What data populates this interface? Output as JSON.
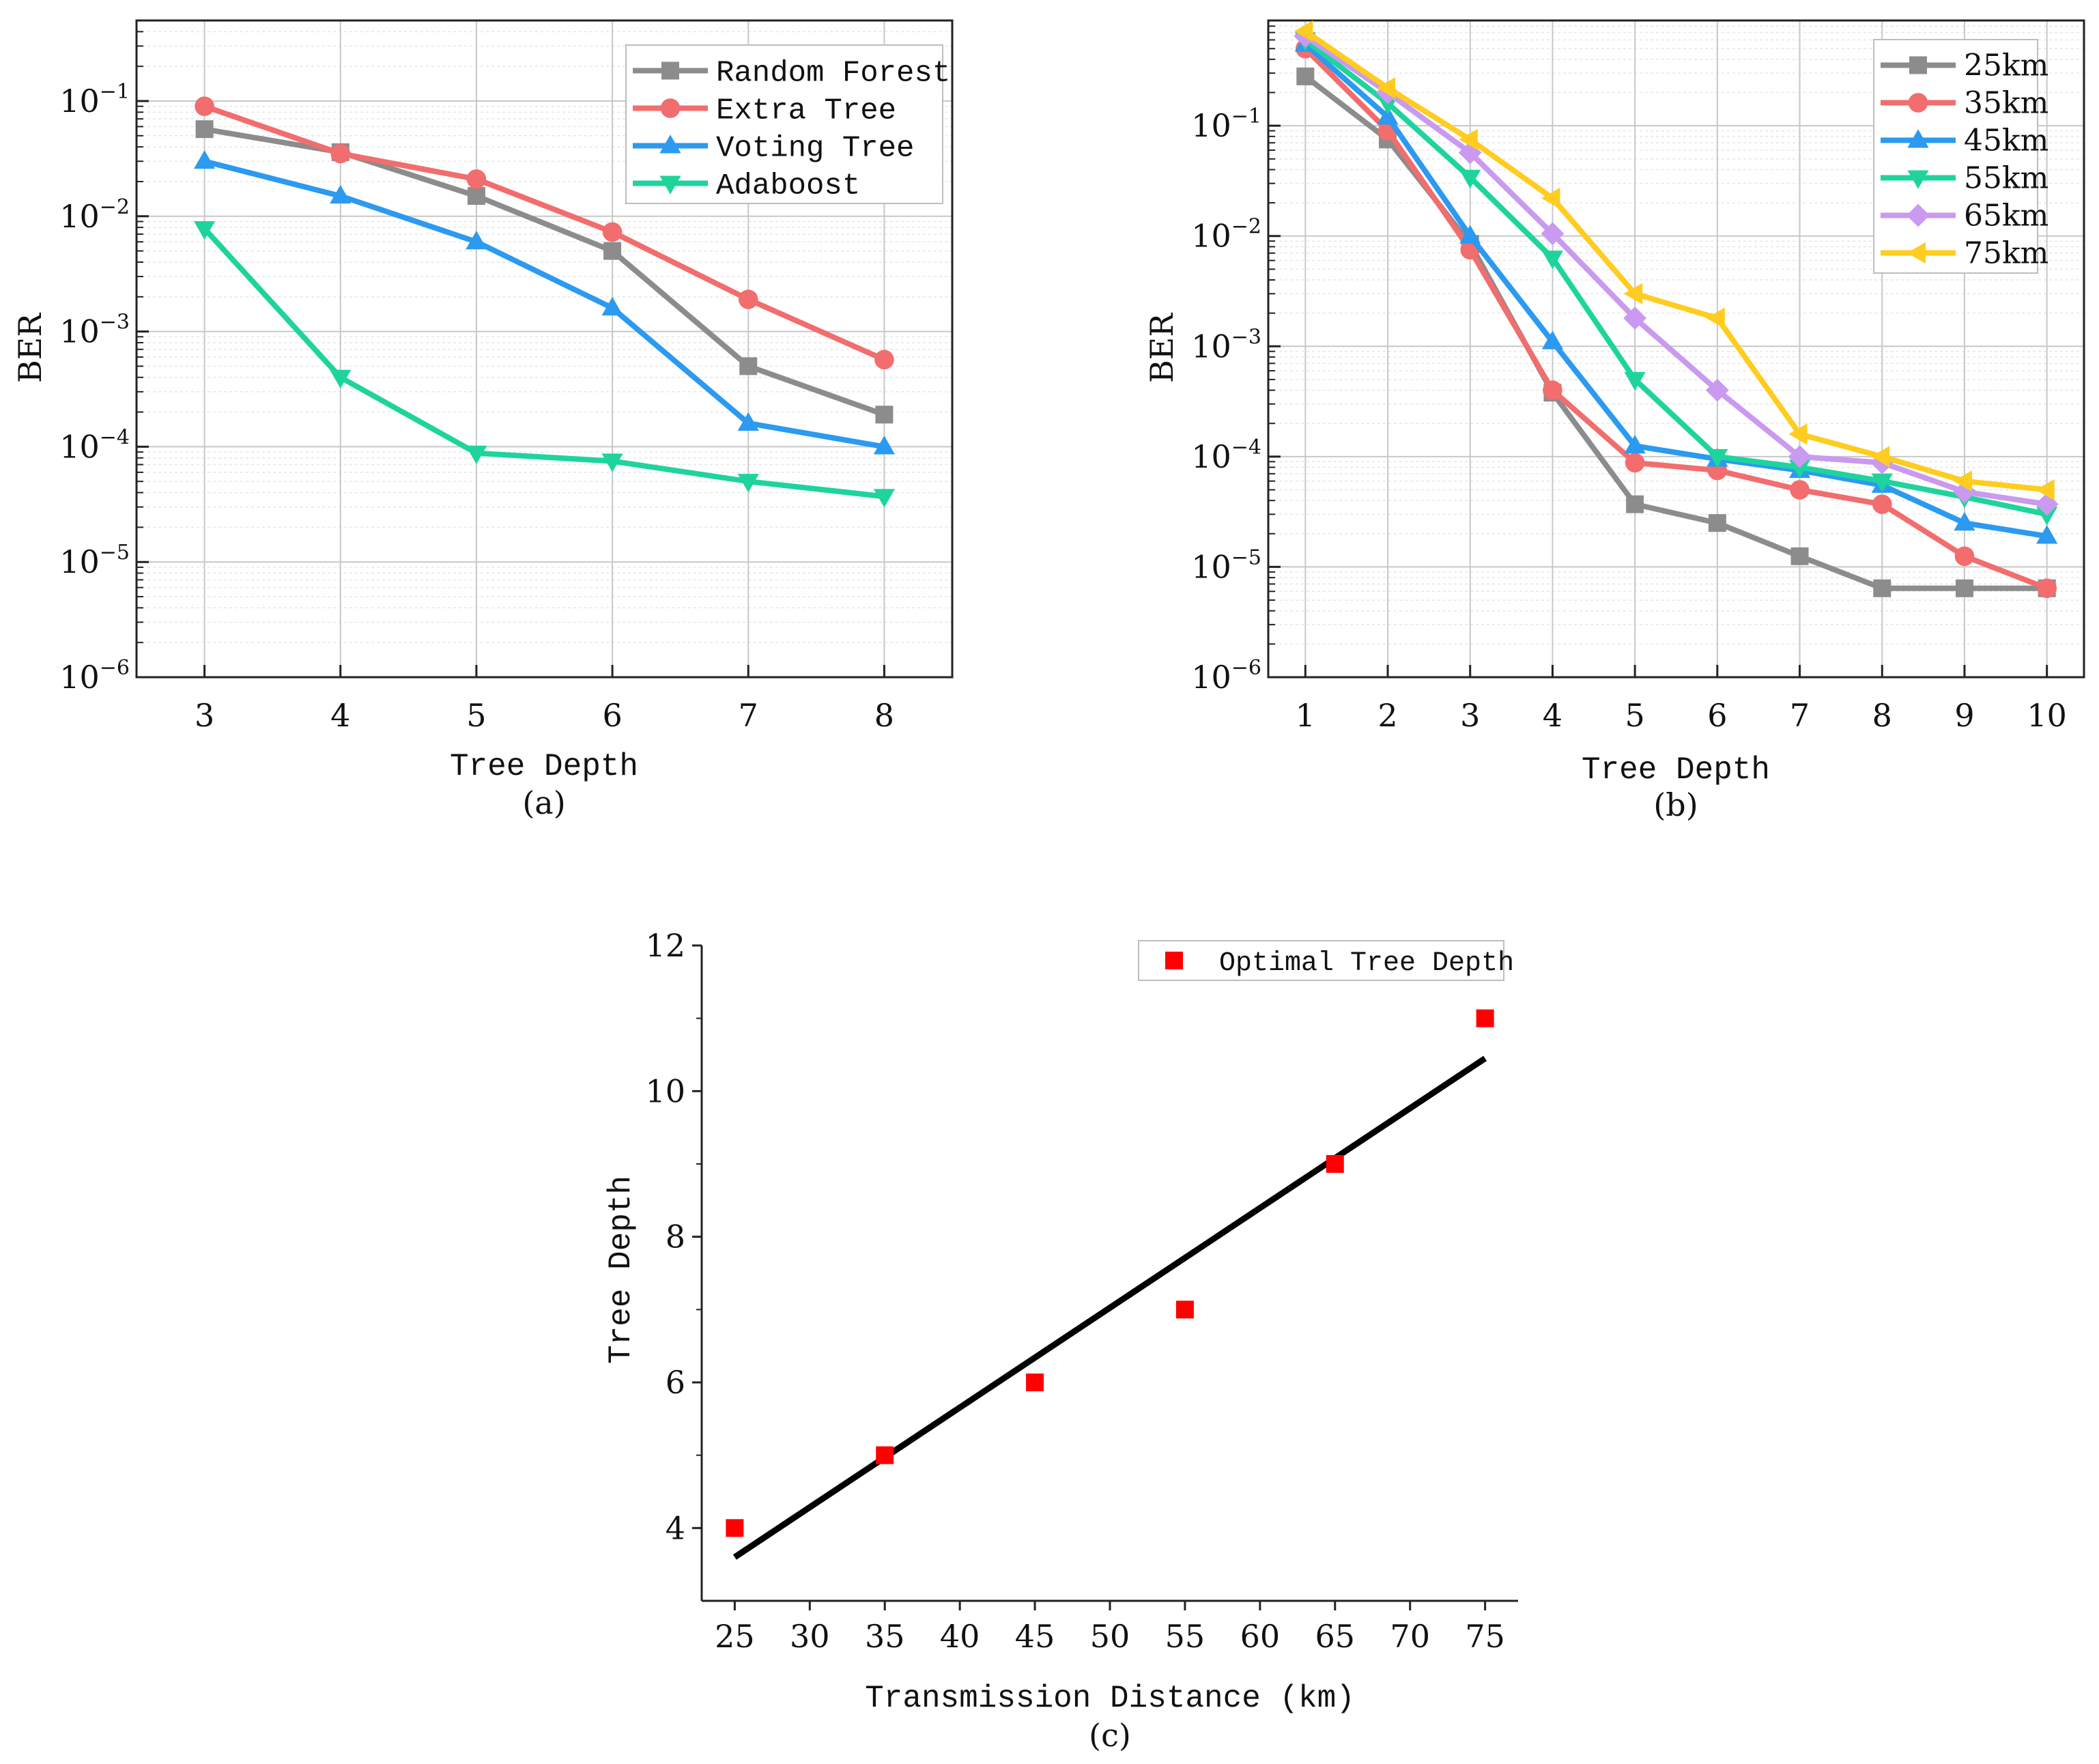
{
  "colors": {
    "gray": "#8c8c8c",
    "red": "#f26d6d",
    "blue": "#2b9af0",
    "green": "#1fd49c",
    "purple": "#c99af0",
    "yellow": "#ffcc1f",
    "fit_line": "#000000",
    "scatter": "#ff0000",
    "grid": "#c8c8c8"
  },
  "chart_data": [
    {
      "id": "a",
      "type": "line",
      "caption": "(a)",
      "xlabel": "Tree Depth",
      "ylabel": "BER",
      "yscale": "log",
      "ylim": [
        1e-06,
        0.5
      ],
      "ytick_values": [
        1e-06,
        1e-05,
        0.0001,
        0.001,
        0.01,
        0.1
      ],
      "ytick_labels": [
        {
          "base": "10",
          "exp": "−6"
        },
        {
          "base": "10",
          "exp": "−5"
        },
        {
          "base": "10",
          "exp": "−4"
        },
        {
          "base": "10",
          "exp": "−3"
        },
        {
          "base": "10",
          "exp": "−2"
        },
        {
          "base": "10",
          "exp": "−1"
        }
      ],
      "xlim": [
        2.5,
        8.5
      ],
      "x": [
        3,
        4,
        5,
        6,
        7,
        8
      ],
      "xtick_labels": [
        "3",
        "4",
        "5",
        "6",
        "7",
        "8"
      ],
      "grid": true,
      "legend": "top-right",
      "series": [
        {
          "name": "Random Forest",
          "marker": "square",
          "color": "#8c8c8c",
          "values": [
            0.057,
            0.036,
            0.015,
            0.005,
            0.0005,
            0.00019
          ]
        },
        {
          "name": "Extra Tree",
          "marker": "circle",
          "color": "#f26d6d",
          "values": [
            0.09,
            0.035,
            0.021,
            0.0073,
            0.0019,
            0.00057
          ]
        },
        {
          "name": "Voting Tree",
          "marker": "triangle-up",
          "color": "#2b9af0",
          "values": [
            0.03,
            0.015,
            0.006,
            0.0016,
            0.00016,
            0.0001
          ]
        },
        {
          "name": "Adaboost",
          "marker": "triangle-down",
          "color": "#1fd49c",
          "values": [
            0.0078,
            0.0004,
            8.8e-05,
            7.5e-05,
            5e-05,
            3.7e-05
          ]
        }
      ]
    },
    {
      "id": "b",
      "type": "line",
      "caption": "(b)",
      "xlabel": "Tree Depth",
      "ylabel": "BER",
      "yscale": "log",
      "ylim": [
        1e-06,
        0.9
      ],
      "ytick_values": [
        1e-06,
        1e-05,
        0.0001,
        0.001,
        0.01,
        0.1
      ],
      "ytick_labels": [
        {
          "base": "10",
          "exp": "−6"
        },
        {
          "base": "10",
          "exp": "−5"
        },
        {
          "base": "10",
          "exp": "−4"
        },
        {
          "base": "10",
          "exp": "−3"
        },
        {
          "base": "10",
          "exp": "−2"
        },
        {
          "base": "10",
          "exp": "−1"
        }
      ],
      "xlim": [
        0.55,
        10.45
      ],
      "x": [
        1,
        2,
        3,
        4,
        5,
        6,
        7,
        8,
        9,
        10
      ],
      "xtick_labels": [
        "1",
        "2",
        "3",
        "4",
        "5",
        "6",
        "7",
        "8",
        "9",
        "10"
      ],
      "grid": true,
      "legend": "top-right",
      "series": [
        {
          "name": "25km",
          "marker": "square",
          "color": "#8c8c8c",
          "values": [
            0.28,
            0.075,
            0.0085,
            0.00038,
            3.7e-05,
            2.5e-05,
            1.25e-05,
            6.4e-06,
            6.4e-06,
            6.4e-06
          ]
        },
        {
          "name": "35km",
          "marker": "circle",
          "color": "#f26d6d",
          "values": [
            0.5,
            0.09,
            0.0075,
            0.0004,
            8.8e-05,
            7.5e-05,
            5e-05,
            3.7e-05,
            1.25e-05,
            6.4e-06
          ]
        },
        {
          "name": "45km",
          "marker": "triangle-up",
          "color": "#2b9af0",
          "values": [
            0.55,
            0.12,
            0.01,
            0.0011,
            0.000125,
            9.5e-05,
            7.5e-05,
            5.5e-05,
            2.5e-05,
            1.9e-05
          ]
        },
        {
          "name": "55km",
          "marker": "triangle-down",
          "color": "#1fd49c",
          "values": [
            0.6,
            0.16,
            0.034,
            0.0063,
            0.0005,
            0.0001,
            8e-05,
            6e-05,
            4.3e-05,
            3e-05
          ]
        },
        {
          "name": "65km",
          "marker": "diamond",
          "color": "#c99af0",
          "values": [
            0.65,
            0.2,
            0.057,
            0.0105,
            0.0018,
            0.0004,
            0.0001,
            8.8e-05,
            4.8e-05,
            3.7e-05
          ]
        },
        {
          "name": "75km",
          "marker": "triangle-left",
          "color": "#ffcc1f",
          "values": [
            0.72,
            0.22,
            0.075,
            0.022,
            0.003,
            0.0018,
            0.00016,
            0.0001,
            6e-05,
            5e-05
          ]
        }
      ]
    },
    {
      "id": "c",
      "type": "scatter",
      "caption": "(c)",
      "xlabel": "Transmission Distance (km)",
      "ylabel": "Tree Depth",
      "xlim": [
        22.8,
        77.2
      ],
      "ylim": [
        3,
        12
      ],
      "x_ticks": [
        25,
        30,
        35,
        40,
        45,
        50,
        55,
        60,
        65,
        70,
        75
      ],
      "xtick_labels": [
        "25",
        "30",
        "35",
        "40",
        "45",
        "50",
        "55",
        "60",
        "65",
        "70",
        "75"
      ],
      "y_ticks": [
        4,
        6,
        8,
        10,
        12
      ],
      "ytick_labels": [
        "4",
        "6",
        "8",
        "10",
        "12"
      ],
      "grid": false,
      "legend": "top-right",
      "series": [
        {
          "name": "Optimal Tree Depth",
          "marker": "square",
          "color": "#ff0000",
          "x": [
            25,
            35,
            45,
            55,
            65,
            75
          ],
          "values": [
            4,
            5,
            6,
            7,
            9,
            11
          ]
        }
      ],
      "fit_line": {
        "x": [
          25,
          75
        ],
        "y": [
          3.6,
          10.45
        ]
      }
    }
  ]
}
